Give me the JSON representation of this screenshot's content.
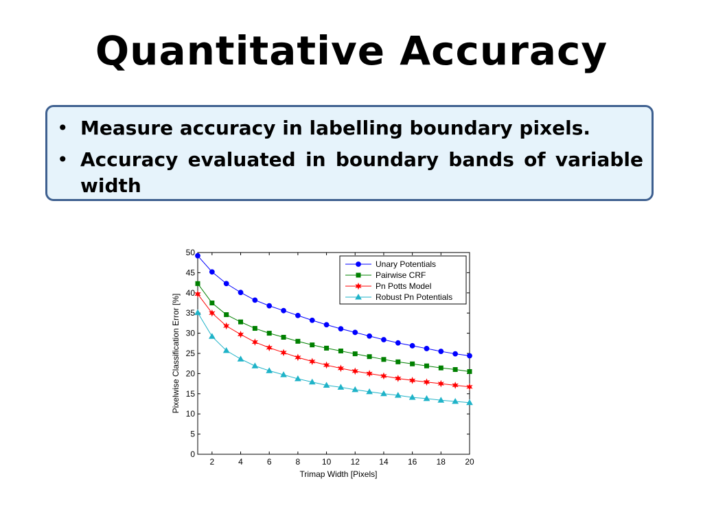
{
  "slide": {
    "title": "Quantitative Accuracy",
    "bullets": [
      "Measure accuracy in labelling boundary pixels.",
      "Accuracy evaluated in boundary bands of variable width"
    ]
  },
  "chart_data": {
    "type": "line",
    "xlabel": "Trimap Width [Pixels]",
    "ylabel": "Pixelwise Classification Error [%]",
    "xlim": [
      1,
      20
    ],
    "ylim": [
      0,
      50
    ],
    "xticks": [
      2,
      4,
      6,
      8,
      10,
      12,
      14,
      16,
      18,
      20
    ],
    "yticks": [
      0,
      5,
      10,
      15,
      20,
      25,
      30,
      35,
      40,
      45,
      50
    ],
    "grid": false,
    "legend_position": "top-right",
    "x": [
      1,
      2,
      3,
      4,
      5,
      6,
      7,
      8,
      9,
      10,
      11,
      12,
      13,
      14,
      15,
      16,
      17,
      18,
      19,
      20
    ],
    "series": [
      {
        "name": "Unary Potentials",
        "color": "#0000ff",
        "marker": "circle",
        "values": [
          49.2,
          45.2,
          42.3,
          40.1,
          38.2,
          36.8,
          35.6,
          34.4,
          33.2,
          32.1,
          31.1,
          30.2,
          29.3,
          28.4,
          27.6,
          26.9,
          26.2,
          25.5,
          24.9,
          24.4
        ]
      },
      {
        "name": "Pairwise CRF",
        "color": "#008000",
        "marker": "square",
        "values": [
          42.3,
          37.5,
          34.6,
          32.8,
          31.2,
          30.0,
          29.0,
          28.0,
          27.1,
          26.3,
          25.6,
          24.9,
          24.2,
          23.5,
          22.9,
          22.4,
          21.9,
          21.4,
          21.0,
          20.5
        ]
      },
      {
        "name": "Pn Potts Model",
        "color": "#ff0000",
        "marker": "star",
        "values": [
          39.7,
          35.0,
          31.8,
          29.7,
          27.8,
          26.4,
          25.2,
          24.0,
          23.0,
          22.1,
          21.3,
          20.6,
          20.0,
          19.4,
          18.8,
          18.3,
          17.9,
          17.5,
          17.1,
          16.7
        ]
      },
      {
        "name": "Robust Pn Potentials",
        "color": "#1fb3c8",
        "marker": "triangle",
        "values": [
          35.1,
          29.2,
          25.7,
          23.6,
          21.9,
          20.7,
          19.7,
          18.7,
          17.9,
          17.1,
          16.6,
          16.0,
          15.5,
          15.0,
          14.6,
          14.1,
          13.8,
          13.4,
          13.1,
          12.8
        ]
      }
    ]
  }
}
